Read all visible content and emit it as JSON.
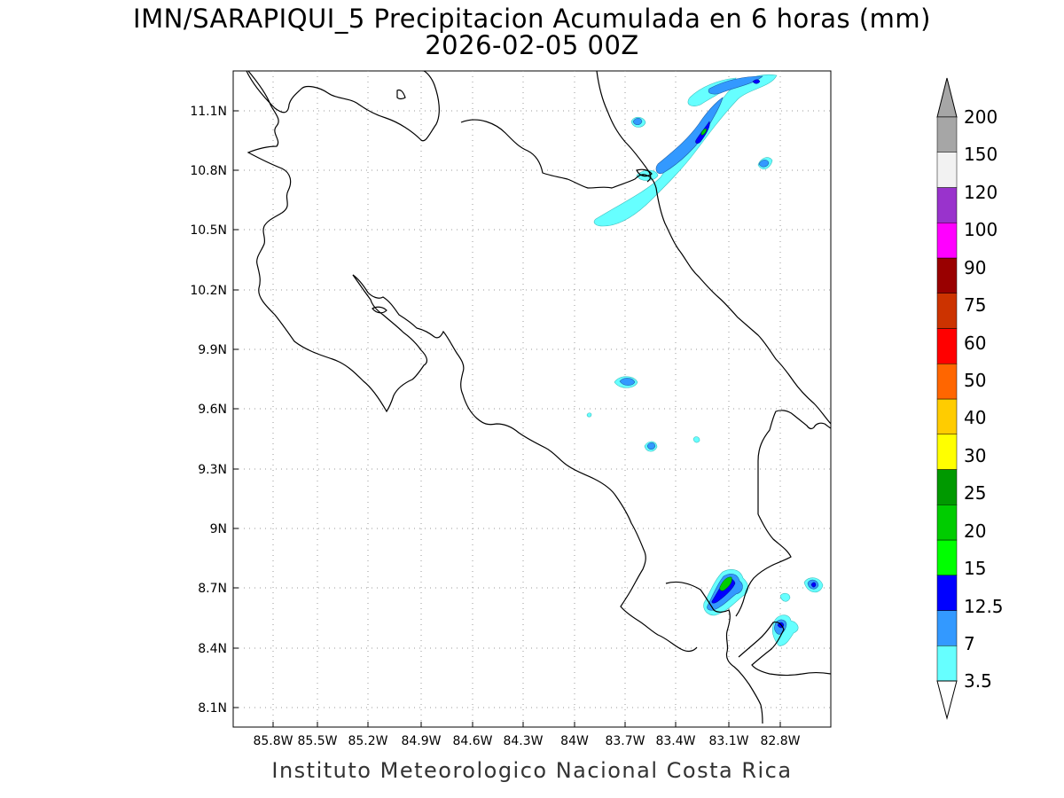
{
  "title": {
    "line1": "IMN/SARAPIQUI_5 Precipitacion Acumulada en 6 horas (mm)",
    "line2": "2026-02-05 00Z"
  },
  "credit": "Instituto Meteorologico Nacional Costa Rica",
  "axes": {
    "x_ticks": [
      "85.8W",
      "85.5W",
      "85.2W",
      "84.9W",
      "84.6W",
      "84.3W",
      "84W",
      "83.7W",
      "83.4W",
      "83.1W",
      "82.8W"
    ],
    "y_ticks": [
      "11.1N",
      "10.8N",
      "10.5N",
      "10.2N",
      "9.9N",
      "9.6N",
      "9.3N",
      "9N",
      "8.7N",
      "8.4N",
      "8.1N"
    ],
    "grid": "dotted"
  },
  "colorbar": {
    "labels": [
      "3.5",
      "7",
      "12.5",
      "15",
      "20",
      "25",
      "30",
      "40",
      "50",
      "60",
      "75",
      "90",
      "100",
      "120",
      "150",
      "200"
    ],
    "colors": [
      "#66ffff",
      "#3399ff",
      "#0000ff",
      "#00ff00",
      "#00cc00",
      "#009900",
      "#ffff00",
      "#ffcc00",
      "#ff6600",
      "#ff0000",
      "#cc3300",
      "#990000",
      "#ff00ff",
      "#9933cc",
      "#f2f2f2",
      "#a6a6a6"
    ],
    "lower_extension_color": "#ffffff",
    "upper_extension_color": "#a6a6a6"
  },
  "precip_levels_mm": {
    "light": "3.5",
    "moderate": "7",
    "heavy": "12.5",
    "very_heavy": "15"
  }
}
